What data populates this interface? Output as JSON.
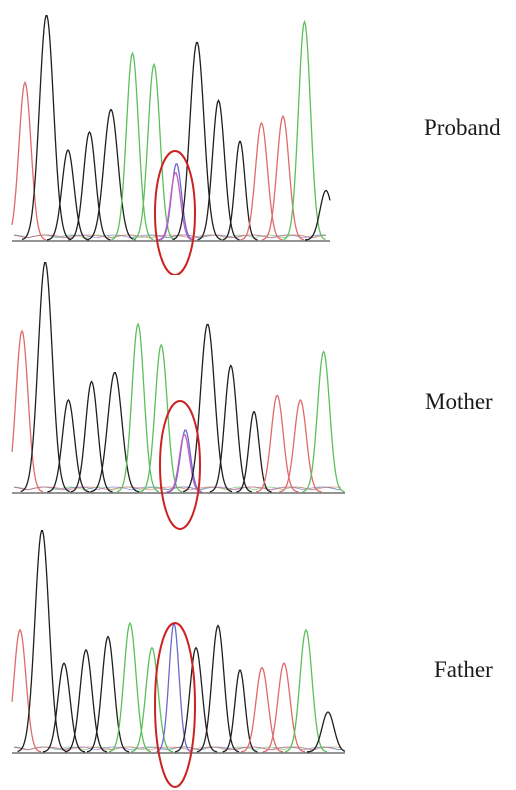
{
  "panels": [
    {
      "label": "Proband",
      "peaks": [
        {
          "base": "T",
          "h": 0.7,
          "w": 6
        },
        {
          "base": "C",
          "h": 1.0,
          "w": 7
        },
        {
          "base": "C",
          "h": 0.4,
          "w": 6
        },
        {
          "base": "C",
          "h": 0.48,
          "w": 6
        },
        {
          "base": "C",
          "h": 0.58,
          "w": 7
        },
        {
          "base": "G",
          "h": 0.83,
          "w": 6
        },
        {
          "base": "G",
          "h": 0.78,
          "w": 6
        },
        {
          "base": "het",
          "h": 0.3,
          "w": 5,
          "secondary": "A",
          "h2": 0.34
        },
        {
          "base": "C",
          "h": 0.88,
          "w": 7
        },
        {
          "base": "C",
          "h": 0.62,
          "w": 6
        },
        {
          "base": "C",
          "h": 0.44,
          "w": 5
        },
        {
          "base": "T",
          "h": 0.52,
          "w": 6
        },
        {
          "base": "T",
          "h": 0.55,
          "w": 6
        },
        {
          "base": "G",
          "h": 0.97,
          "w": 6
        },
        {
          "base": "C",
          "h": 0.22,
          "w": 6
        }
      ]
    },
    {
      "label": "Mother",
      "peaks": [
        {
          "base": "T",
          "h": 0.7,
          "w": 6
        },
        {
          "base": "C",
          "h": 1.0,
          "w": 7
        },
        {
          "base": "C",
          "h": 0.4,
          "w": 6
        },
        {
          "base": "C",
          "h": 0.48,
          "w": 6
        },
        {
          "base": "C",
          "h": 0.52,
          "w": 7
        },
        {
          "base": "G",
          "h": 0.73,
          "w": 6
        },
        {
          "base": "G",
          "h": 0.64,
          "w": 6
        },
        {
          "base": "het",
          "h": 0.25,
          "w": 5,
          "secondary": "A",
          "h2": 0.27
        },
        {
          "base": "C",
          "h": 0.73,
          "w": 7
        },
        {
          "base": "C",
          "h": 0.55,
          "w": 6
        },
        {
          "base": "C",
          "h": 0.35,
          "w": 5
        },
        {
          "base": "T",
          "h": 0.42,
          "w": 6
        },
        {
          "base": "T",
          "h": 0.4,
          "w": 6
        },
        {
          "base": "G",
          "h": 0.61,
          "w": 6
        }
      ]
    },
    {
      "label": "Father",
      "peaks": [
        {
          "base": "T",
          "h": 0.55,
          "w": 6
        },
        {
          "base": "C",
          "h": 1.0,
          "w": 7
        },
        {
          "base": "C",
          "h": 0.4,
          "w": 6
        },
        {
          "base": "C",
          "h": 0.46,
          "w": 6
        },
        {
          "base": "C",
          "h": 0.52,
          "w": 6
        },
        {
          "base": "G",
          "h": 0.58,
          "w": 6
        },
        {
          "base": "G",
          "h": 0.47,
          "w": 6
        },
        {
          "base": "A",
          "h": 0.58,
          "w": 5
        },
        {
          "base": "C",
          "h": 0.47,
          "w": 6
        },
        {
          "base": "C",
          "h": 0.57,
          "w": 6
        },
        {
          "base": "C",
          "h": 0.37,
          "w": 5
        },
        {
          "base": "T",
          "h": 0.38,
          "w": 6
        },
        {
          "base": "T",
          "h": 0.4,
          "w": 6
        },
        {
          "base": "G",
          "h": 0.55,
          "w": 6
        },
        {
          "base": "C",
          "h": 0.18,
          "w": 6
        }
      ]
    }
  ],
  "base_colors": {
    "A": "#6a6acc",
    "C": "#1f1f1f",
    "G": "#5cbf5c",
    "T": "#e06a6a"
  },
  "highlight_color": "#cc2222"
}
